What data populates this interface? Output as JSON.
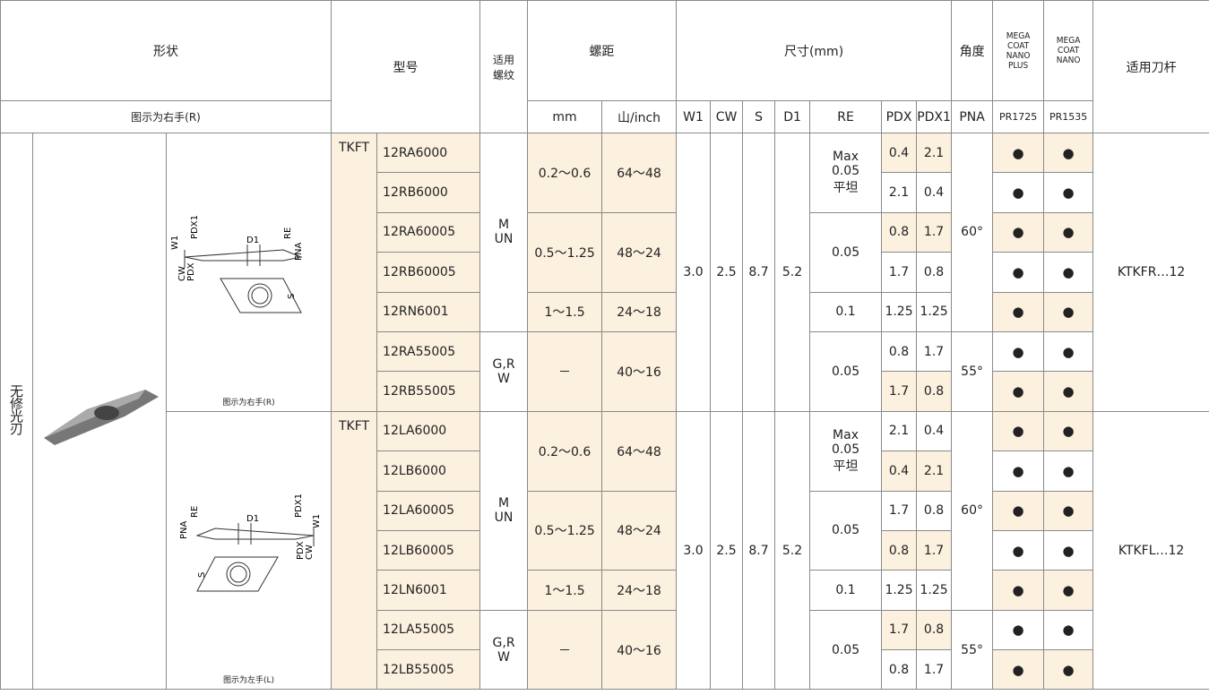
{
  "header": {
    "shape": "形状",
    "shape_note": "图示为右手(R)",
    "model": "型号",
    "thread": [
      "适用",
      "螺纹"
    ],
    "pitch": "螺距",
    "pitch_mm": "mm",
    "pitch_inch": "山/inch",
    "dims": "尺寸(mm)",
    "dim_cols": [
      "W1",
      "CW",
      "S",
      "D1",
      "RE",
      "PDX",
      "PDX1"
    ],
    "angle": "角度",
    "angle_col": "PNA",
    "grade1": [
      "MEGA",
      "COAT",
      "NANO",
      "PLUS"
    ],
    "grade1_code": "PR1725",
    "grade2": [
      "MEGA",
      "COAT",
      "NANO"
    ],
    "grade2_code": "PR1535",
    "holder": "适用刀杆"
  },
  "category": "无修光刃",
  "groups": [
    {
      "note": "图示为右手(R)",
      "diagram_labels": [
        "W1",
        "PDX1",
        "D1",
        "RE",
        "PNA",
        "CW",
        "PDX",
        "S"
      ],
      "prefix": "TKFT",
      "w1": "3.0",
      "cw": "2.5",
      "s": "8.7",
      "d1": "5.2",
      "holder": "KTKFR…12",
      "rows": [
        {
          "model": "12RA6000",
          "pdx": "0.4",
          "pdx1": "2.1",
          "pr1725": "●",
          "pr1535": "●"
        },
        {
          "model": "12RB6000",
          "pdx": "2.1",
          "pdx1": "0.4",
          "pr1725": "●",
          "pr1535": "●"
        },
        {
          "model": "12RA60005",
          "pdx": "0.8",
          "pdx1": "1.7",
          "pr1725": "●",
          "pr1535": "●"
        },
        {
          "model": "12RB60005",
          "pdx": "1.7",
          "pdx1": "0.8",
          "pr1725": "●",
          "pr1535": "●"
        },
        {
          "model": "12RN6001",
          "pdx": "1.25",
          "pdx1": "1.25",
          "pr1725": "●",
          "pr1535": "●"
        },
        {
          "model": "12RA55005",
          "pdx": "0.8",
          "pdx1": "1.7",
          "pr1725": "●",
          "pr1535": "●"
        },
        {
          "model": "12RB55005",
          "pdx": "1.7",
          "pdx1": "0.8",
          "pr1725": "●",
          "pr1535": "●"
        }
      ],
      "threads": [
        {
          "lines": [
            "M",
            "UN"
          ],
          "span": 5
        },
        {
          "lines": [
            "G,R",
            "W"
          ],
          "span": 2
        }
      ],
      "pitches": [
        {
          "mm": "0.2～0.6",
          "inch": "64～48",
          "span": 2
        },
        {
          "mm": "0.5～1.25",
          "inch": "48～24",
          "span": 2
        },
        {
          "mm": "1～1.5",
          "inch": "24～18",
          "span": 1
        },
        {
          "mm": "－",
          "inch": "40～16",
          "span": 2
        }
      ],
      "re": [
        {
          "lines": [
            "Max",
            "0.05",
            "平坦"
          ],
          "span": 2
        },
        {
          "lines": [
            "0.05"
          ],
          "span": 2
        },
        {
          "lines": [
            "0.1"
          ],
          "span": 1
        },
        {
          "lines": [
            "0.05"
          ],
          "span": 2
        }
      ],
      "pna": [
        {
          "label": "60°",
          "span": 5
        },
        {
          "label": "55°",
          "span": 2
        }
      ]
    },
    {
      "note": "图示为左手(L)",
      "diagram_labels": [
        "W1",
        "PDX1",
        "D1",
        "RE",
        "PNA",
        "CW",
        "PDX",
        "S"
      ],
      "prefix": "TKFT",
      "w1": "3.0",
      "cw": "2.5",
      "s": "8.7",
      "d1": "5.2",
      "holder": "KTKFL…12",
      "rows": [
        {
          "model": "12LA6000",
          "pdx": "2.1",
          "pdx1": "0.4",
          "pr1725": "●",
          "pr1535": "●"
        },
        {
          "model": "12LB6000",
          "pdx": "0.4",
          "pdx1": "2.1",
          "pr1725": "●",
          "pr1535": "●"
        },
        {
          "model": "12LA60005",
          "pdx": "1.7",
          "pdx1": "0.8",
          "pr1725": "●",
          "pr1535": "●"
        },
        {
          "model": "12LB60005",
          "pdx": "0.8",
          "pdx1": "1.7",
          "pr1725": "●",
          "pr1535": "●"
        },
        {
          "model": "12LN6001",
          "pdx": "1.25",
          "pdx1": "1.25",
          "pr1725": "●",
          "pr1535": "●"
        },
        {
          "model": "12LA55005",
          "pdx": "1.7",
          "pdx1": "0.8",
          "pr1725": "●",
          "pr1535": "●"
        },
        {
          "model": "12LB55005",
          "pdx": "0.8",
          "pdx1": "1.7",
          "pr1725": "●",
          "pr1535": "●"
        }
      ],
      "threads": [
        {
          "lines": [
            "M",
            "UN"
          ],
          "span": 5
        },
        {
          "lines": [
            "G,R",
            "W"
          ],
          "span": 2
        }
      ],
      "pitches": [
        {
          "mm": "0.2～0.6",
          "inch": "64～48",
          "span": 2
        },
        {
          "mm": "0.5～1.25",
          "inch": "48～24",
          "span": 2
        },
        {
          "mm": "1～1.5",
          "inch": "24～18",
          "span": 1
        },
        {
          "mm": "－",
          "inch": "40～16",
          "span": 2
        }
      ],
      "re": [
        {
          "lines": [
            "Max",
            "0.05",
            "平坦"
          ],
          "span": 2
        },
        {
          "lines": [
            "0.05"
          ],
          "span": 2
        },
        {
          "lines": [
            "0.1"
          ],
          "span": 1
        },
        {
          "lines": [
            "0.05"
          ],
          "span": 2
        }
      ],
      "pna": [
        {
          "label": "60°",
          "span": 5
        },
        {
          "label": "55°",
          "span": 2
        }
      ]
    }
  ]
}
